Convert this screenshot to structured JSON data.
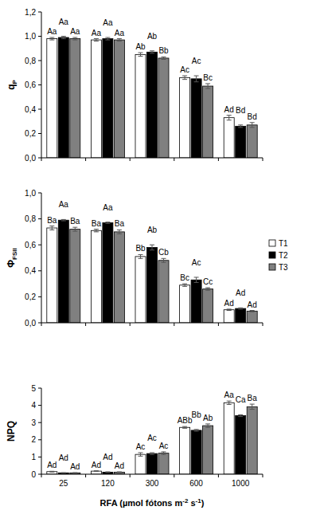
{
  "chart_data": [
    {
      "type": "bar",
      "y_label": "qP",
      "categories": [
        "25",
        "120",
        "300",
        "600",
        "1000"
      ],
      "ylim": [
        0,
        1.2
      ],
      "yticks": [
        {
          "value": 0,
          "label": "0,0"
        },
        {
          "value": 0.2,
          "label": "0,2"
        },
        {
          "value": 0.4,
          "label": "0,4"
        },
        {
          "value": 0.6,
          "label": "0,6"
        },
        {
          "value": 0.8,
          "label": "0,8"
        },
        {
          "value": 1.0,
          "label": "1,0"
        },
        {
          "value": 1.2,
          "label": "1,2"
        }
      ],
      "grid": false,
      "tick_labels": "y",
      "series": [
        {
          "name": "T1",
          "color": "#ffffff",
          "values": [
            0.98,
            0.97,
            0.85,
            0.66,
            0.33
          ],
          "errors": [
            0.01,
            0.01,
            0.015,
            0.015,
            0.02
          ],
          "labels": [
            "Aa",
            "Aa",
            "Ab",
            "Ac",
            "Ad"
          ]
        },
        {
          "name": "T2",
          "color": "#000000",
          "values": [
            0.99,
            0.98,
            0.87,
            0.65,
            0.26
          ],
          "errors": [
            0.01,
            0.01,
            0.01,
            0.025,
            0.01
          ],
          "labels": [
            "Aa",
            "Aa",
            "Ab",
            "Ac",
            "Bd"
          ]
        },
        {
          "name": "T3",
          "color": "#808080",
          "values": [
            0.98,
            0.97,
            0.82,
            0.59,
            0.27
          ],
          "errors": [
            0.01,
            0.01,
            0.01,
            0.02,
            0.02
          ],
          "labels": [
            "Aa",
            "Aa",
            "Bb",
            "Bc",
            "Bd"
          ]
        }
      ]
    },
    {
      "type": "bar",
      "y_label": "ΦFSII",
      "categories": [
        "25",
        "120",
        "300",
        "600",
        "1000"
      ],
      "ylim": [
        0,
        1.0
      ],
      "yticks": [
        {
          "value": 0,
          "label": "0,0"
        },
        {
          "value": 0.2,
          "label": "0,2"
        },
        {
          "value": 0.4,
          "label": "0,4"
        },
        {
          "value": 0.6,
          "label": "0,6"
        },
        {
          "value": 0.8,
          "label": "0,8"
        },
        {
          "value": 1.0,
          "label": "1,0"
        }
      ],
      "grid": false,
      "tick_labels": "y",
      "legend": "right",
      "series": [
        {
          "name": "T1",
          "color": "#ffffff",
          "values": [
            0.73,
            0.71,
            0.51,
            0.29,
            0.1
          ],
          "errors": [
            0.015,
            0.01,
            0.015,
            0.01,
            0.005
          ],
          "labels": [
            "Ba",
            "Ba",
            "Bb",
            "Bc",
            "Ad"
          ]
        },
        {
          "name": "T2",
          "color": "#000000",
          "values": [
            0.79,
            0.77,
            0.58,
            0.33,
            0.11
          ],
          "errors": [
            0.005,
            0.005,
            0.02,
            0.02,
            0.005
          ],
          "labels": [
            "Aa",
            "Aa",
            "Ab",
            "Ac",
            "Ad"
          ]
        },
        {
          "name": "T3",
          "color": "#808080",
          "values": [
            0.72,
            0.7,
            0.48,
            0.26,
            0.09
          ],
          "errors": [
            0.015,
            0.015,
            0.015,
            0.01,
            0.005
          ],
          "labels": [
            "Ba",
            "Ba",
            "Cb",
            "Cc",
            "Ad"
          ]
        }
      ]
    },
    {
      "type": "bar",
      "y_label": "NPQ",
      "x_label": "RFA (µmol fótons m-2 s-1)",
      "categories": [
        "25",
        "120",
        "300",
        "600",
        "1000"
      ],
      "ylim": [
        0,
        5
      ],
      "yticks": [
        0,
        1,
        2,
        3,
        4,
        5
      ],
      "grid": false,
      "series": [
        {
          "name": "T1",
          "color": "#ffffff",
          "values": [
            0.15,
            0.18,
            1.15,
            2.72,
            4.15
          ],
          "errors": [
            0.02,
            0.02,
            0.1,
            0.05,
            0.1
          ],
          "labels": [
            "Ad",
            "Ad",
            "Ac",
            "ABb",
            "Aa"
          ]
        },
        {
          "name": "T2",
          "color": "#000000",
          "values": [
            0.08,
            0.12,
            1.2,
            2.55,
            3.4
          ],
          "errors": [
            0.01,
            0.02,
            0.05,
            0.05,
            0.05
          ],
          "labels": [
            "Ad",
            "Ad",
            "Ac",
            "Bb",
            "Ca"
          ]
        },
        {
          "name": "T3",
          "color": "#808080",
          "values": [
            0.08,
            0.12,
            1.22,
            2.82,
            3.92
          ],
          "errors": [
            0.01,
            0.02,
            0.08,
            0.1,
            0.15
          ],
          "labels": [
            "Ad",
            "Ad",
            "Ac",
            "Ab",
            "Ba"
          ]
        }
      ]
    }
  ]
}
